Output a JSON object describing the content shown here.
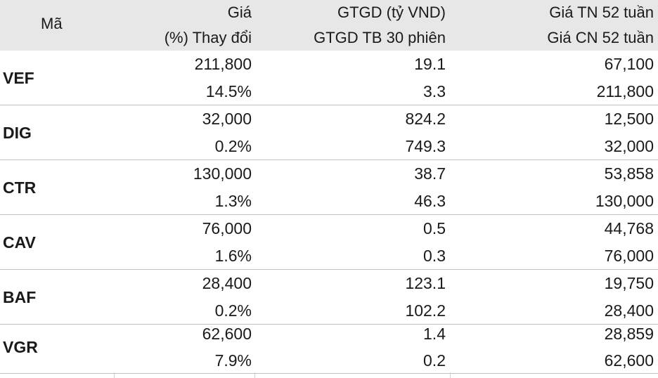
{
  "header": {
    "ticker": "Mã",
    "col1": [
      "Giá",
      "(%) Thay đổi"
    ],
    "col2": [
      "GTGD (tỷ VND)",
      "GTGD TB 30 phiên"
    ],
    "col3": [
      "Giá TN 52 tuần",
      "Giá CN 52 tuần"
    ]
  },
  "rows": [
    {
      "ticker": "VEF",
      "price": "211,800",
      "change": "14.5%",
      "value": "19.1",
      "avg_value": "3.3",
      "low52": "67,100",
      "high52": "211,800"
    },
    {
      "ticker": "DIG",
      "price": "32,000",
      "change": "0.2%",
      "value": "824.2",
      "avg_value": "749.3",
      "low52": "12,500",
      "high52": "32,000"
    },
    {
      "ticker": "CTR",
      "price": "130,000",
      "change": "1.3%",
      "value": "38.7",
      "avg_value": "46.3",
      "low52": "53,858",
      "high52": "130,000"
    },
    {
      "ticker": "CAV",
      "price": "76,000",
      "change": "1.6%",
      "value": "0.5",
      "avg_value": "0.3",
      "low52": "44,768",
      "high52": "76,000"
    },
    {
      "ticker": "BAF",
      "price": "28,400",
      "change": "0.2%",
      "value": "123.1",
      "avg_value": "102.2",
      "low52": "19,750",
      "high52": "28,400"
    },
    {
      "ticker": "VGR",
      "price": "62,600",
      "change": "7.9%",
      "value": "1.4",
      "avg_value": "0.2",
      "low52": "28,859",
      "high52": "62,600"
    }
  ]
}
